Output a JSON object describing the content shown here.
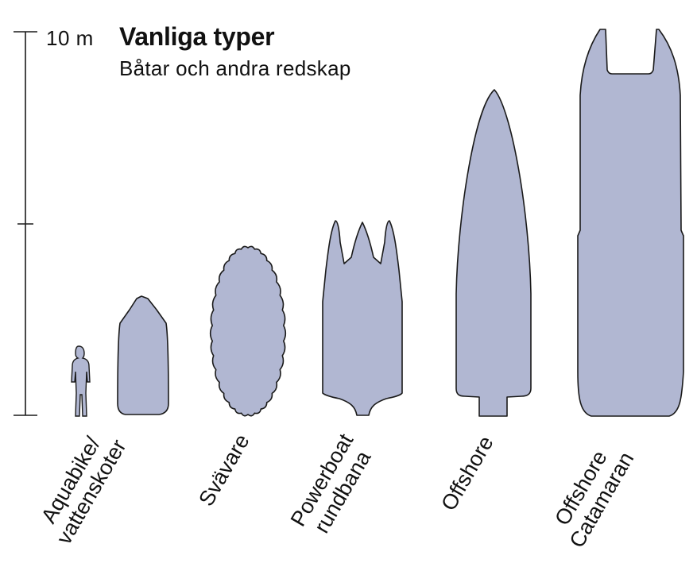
{
  "title": "Vanliga typer",
  "subtitle": "Båtar och andra redskap",
  "scale_label": "10 m",
  "fill_color": "#b1b7d2",
  "stroke_color": "#1a1a1a",
  "categories": [
    {
      "id": "aquabike",
      "lines": [
        "Aquabike/",
        "vattenskoter"
      ]
    },
    {
      "id": "svavare",
      "lines": [
        "Svävare"
      ]
    },
    {
      "id": "powerboat",
      "lines": [
        "Powerboat",
        "rundbana"
      ]
    },
    {
      "id": "offshore",
      "lines": [
        "Offshore"
      ]
    },
    {
      "id": "catamaran",
      "lines": [
        "Offshore",
        "Catamaran"
      ]
    }
  ]
}
